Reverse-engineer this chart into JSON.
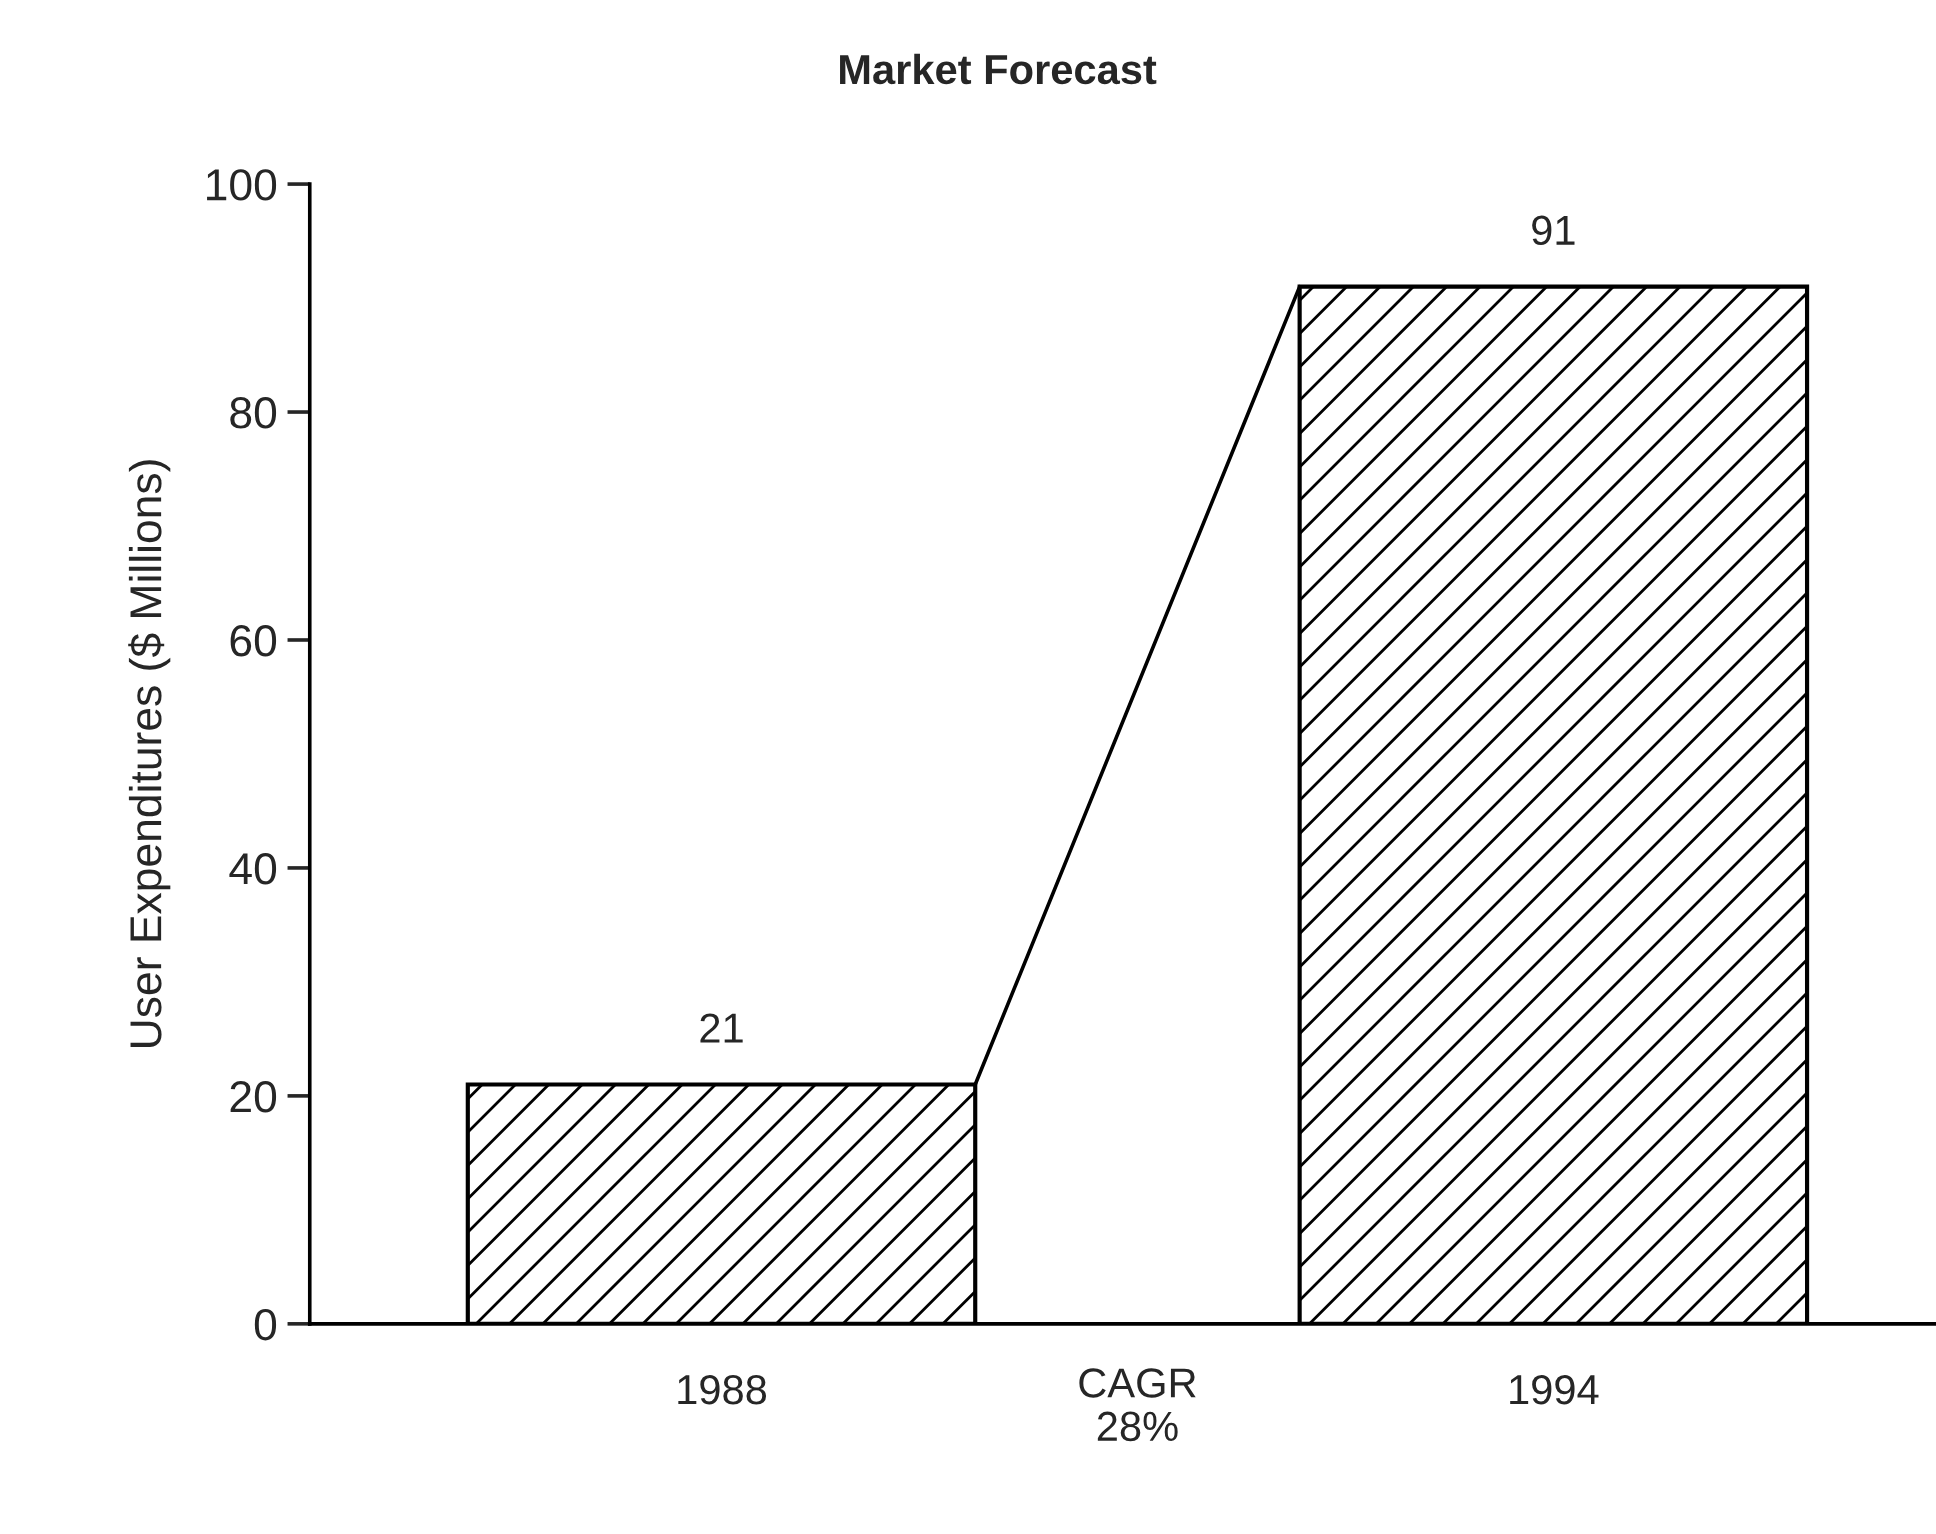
{
  "chart_data": {
    "type": "bar",
    "title": "Market Forecast",
    "ylabel": "User Expenditures ($ Millions)",
    "categories": [
      "1988",
      "1994"
    ],
    "values": [
      21,
      91
    ],
    "color": "#000000",
    "data_labels": true,
    "ylim": [
      0,
      100
    ],
    "yticks": [
      0,
      20,
      40,
      60,
      80,
      100
    ],
    "grid": false,
    "legend": false,
    "annotations": [
      "CAGR\n28%"
    ]
  }
}
